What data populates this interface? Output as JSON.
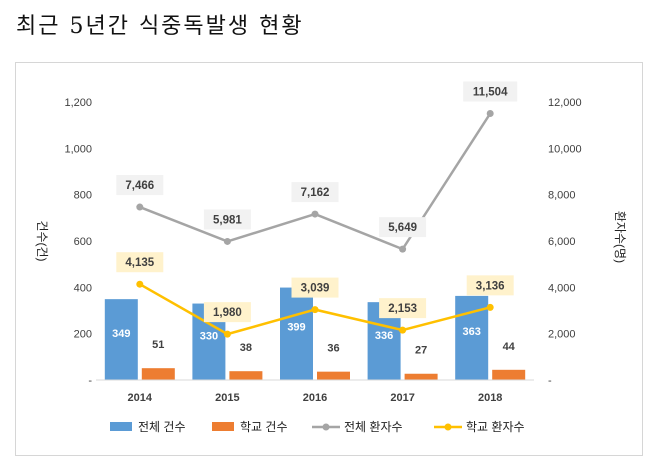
{
  "title": "최근 5년간 식중독발생 현황",
  "chart_data": {
    "type": "bar",
    "categories": [
      "2014",
      "2015",
      "2016",
      "2017",
      "2018"
    ],
    "y_left": {
      "label": "건수(건)",
      "ylim": [
        0,
        1200
      ],
      "ticks": [
        "1,200",
        "1,000",
        "800",
        "600",
        "400",
        "200",
        "-"
      ]
    },
    "y_right": {
      "label": "환자수(명)",
      "ylim": [
        0,
        12000
      ],
      "ticks": [
        "12,000",
        "10,000",
        "8,000",
        "6,000",
        "4,000",
        "2,000",
        "-"
      ]
    },
    "series": [
      {
        "name": "전체 건수",
        "kind": "bar",
        "axis": "left",
        "color": "#5B9BD5",
        "values": [
          349,
          330,
          399,
          336,
          363
        ],
        "labels": [
          "349",
          "330",
          "399",
          "336",
          "363"
        ]
      },
      {
        "name": "학교 건수",
        "kind": "bar",
        "axis": "left",
        "color": "#ED7D31",
        "values": [
          51,
          38,
          36,
          27,
          44
        ],
        "labels": [
          "51",
          "38",
          "36",
          "27",
          "44"
        ]
      },
      {
        "name": "전체 환자수",
        "kind": "line",
        "axis": "right",
        "color": "#A5A5A5",
        "values": [
          7466,
          5981,
          7162,
          5649,
          11504
        ],
        "labels": [
          "7,466",
          "5,981",
          "7,162",
          "5,649",
          "11,504"
        ]
      },
      {
        "name": "학교 환자수",
        "kind": "line",
        "axis": "right",
        "color": "#FFC000",
        "values": [
          4135,
          1980,
          3039,
          2153,
          3136
        ],
        "labels": [
          "4,135",
          "1,980",
          "3,039",
          "2,153",
          "3,136"
        ]
      }
    ],
    "legend": "bottom",
    "grid": false
  }
}
